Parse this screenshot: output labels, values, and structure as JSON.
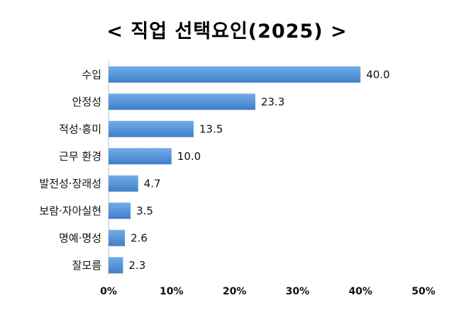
{
  "chart_data": {
    "type": "bar",
    "orientation": "horizontal",
    "title": "< 직업 선택요인(2025) >",
    "categories": [
      "수입",
      "안정성",
      "적성·흥미",
      "근무 환경",
      "발전성·장래성",
      "보람·자아실현",
      "명예·명성",
      "잘모름"
    ],
    "values": [
      40.0,
      23.3,
      13.5,
      10.0,
      4.7,
      3.5,
      2.6,
      2.3
    ],
    "value_labels": [
      "40.0",
      "23.3",
      "13.5",
      "10.0",
      "4.7",
      "3.5",
      "2.6",
      "2.3"
    ],
    "xlim": [
      0,
      50
    ],
    "xticks": [
      "0%",
      "10%",
      "20%",
      "30%",
      "40%",
      "50%"
    ],
    "xlabel": "",
    "ylabel": "",
    "grid": false,
    "bar_color": "#4f8fd6",
    "bar_color_light": "#6aa6e6"
  }
}
